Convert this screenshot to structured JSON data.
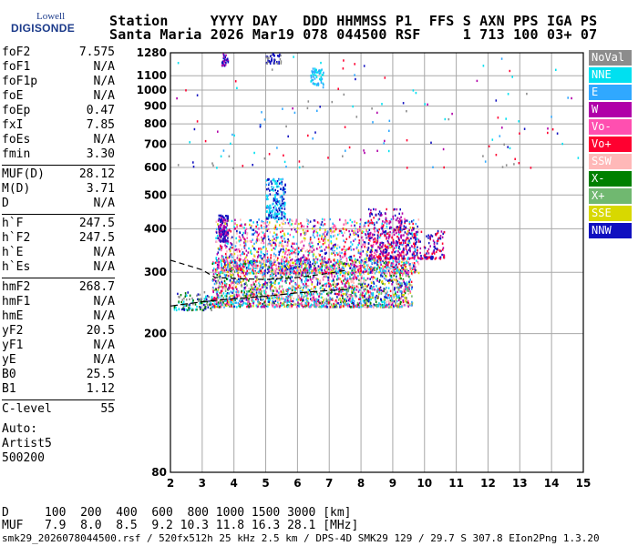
{
  "logo": {
    "line1": "Lowell",
    "line2": "DIGISONDE"
  },
  "header": {
    "row1": "Station     YYYY DAY   DDD HHMMSS P1  FFS S AXN PPS IGA PS",
    "row2": "Santa Maria 2026 Mar19 078 044500 RSF     1 713 100 03+ 07"
  },
  "params": [
    {
      "k": "foF2",
      "v": "7.575"
    },
    {
      "k": "foF1",
      "v": "N/A"
    },
    {
      "k": "foF1p",
      "v": "N/A"
    },
    {
      "k": "foE",
      "v": "N/A"
    },
    {
      "k": "foEp",
      "v": "0.47"
    },
    {
      "k": "fxI",
      "v": "7.85"
    },
    {
      "k": "foEs",
      "v": "N/A"
    },
    {
      "k": "fmin",
      "v": "3.30"
    },
    {
      "k": "MUF(D)",
      "v": "28.12"
    },
    {
      "k": "M(D)",
      "v": "3.71"
    },
    {
      "k": "D",
      "v": "N/A"
    },
    {
      "k": "h`F",
      "v": "247.5"
    },
    {
      "k": "h`F2",
      "v": "247.5"
    },
    {
      "k": "h`E",
      "v": "N/A"
    },
    {
      "k": "h`Es",
      "v": "N/A"
    },
    {
      "k": "hmF2",
      "v": "268.7"
    },
    {
      "k": "hmF1",
      "v": "N/A"
    },
    {
      "k": "hmE",
      "v": "N/A"
    },
    {
      "k": "yF2",
      "v": "20.5"
    },
    {
      "k": "yF1",
      "v": "N/A"
    },
    {
      "k": "yE",
      "v": "N/A"
    },
    {
      "k": "B0",
      "v": "25.5"
    },
    {
      "k": "B1",
      "v": "1.12"
    },
    {
      "k": "C-level",
      "v": "55"
    }
  ],
  "auto": {
    "l1": "Auto:",
    "l2": "Artist5",
    "l3": "500200"
  },
  "legend": [
    {
      "label": "NoVal",
      "color": "#8c8c8c"
    },
    {
      "label": "NNE",
      "color": "#00e0f0"
    },
    {
      "label": "E",
      "color": "#30a8ff"
    },
    {
      "label": "W",
      "color": "#b000a8"
    },
    {
      "label": "Vo-",
      "color": "#ff4fb0"
    },
    {
      "label": "Vo+",
      "color": "#ff0030"
    },
    {
      "label": "SSW",
      "color": "#ffb8b8"
    },
    {
      "label": "X-",
      "color": "#008000"
    },
    {
      "label": "X+",
      "color": "#70b870"
    },
    {
      "label": "SSE",
      "color": "#d8d800"
    },
    {
      "label": "NNW",
      "color": "#1010c0"
    }
  ],
  "muf_table": {
    "row1": "D     100  200  400  600  800 1000 1500 3000 [km]",
    "row2": "MUF   7.9  8.0  8.5  9.2 10.3 11.8 16.3 28.1 [MHz]"
  },
  "footer": "smk29_2026078044500.rsf / 520fx512h 25 kHz 2.5 km / DPS-4D SMK29 129 / 29.7 S 307.8 EIon2Png 1.3.20",
  "chart_data": {
    "type": "scatter",
    "xlim": [
      2,
      15
    ],
    "ylim": [
      80,
      1280
    ],
    "y_scale": "log",
    "x_ticks": [
      2,
      3,
      4,
      5,
      6,
      7,
      8,
      9,
      10,
      11,
      12,
      13,
      14,
      15
    ],
    "y_ticks": [
      80,
      200,
      300,
      400,
      500,
      600,
      700,
      800,
      900,
      1000,
      1100,
      1280
    ],
    "grid": true,
    "traces": [
      {
        "name": "trace-upper",
        "x": [
          2.0,
          3.0,
          3.4,
          4.0,
          5.0,
          6.0,
          7.0,
          7.6
        ],
        "y": [
          325,
          305,
          290,
          288,
          286,
          290,
          298,
          305
        ]
      },
      {
        "name": "trace-lower",
        "x": [
          2.0,
          3.0,
          4.0,
          5.0,
          6.0,
          7.0,
          7.6
        ],
        "y": [
          240,
          247,
          252,
          256,
          262,
          266,
          268
        ]
      }
    ],
    "clusters": [
      {
        "x": [
          2.1,
          3.3
        ],
        "y": [
          235,
          265
        ],
        "n": 120,
        "colors": [
          "#1010c0",
          "#8c8c8c",
          "#008000",
          "#00e0f0"
        ]
      },
      {
        "x": [
          3.3,
          9.6
        ],
        "y": [
          240,
          330
        ],
        "n": 2200,
        "colors": [
          "#1010c0",
          "#00e0f0",
          "#30a8ff",
          "#b000a8",
          "#ff0030",
          "#ff4fb0",
          "#008000",
          "#d8d800",
          "#ffb8b8",
          "#70b870"
        ]
      },
      {
        "x": [
          3.4,
          9.8
        ],
        "y": [
          300,
          430
        ],
        "n": 1600,
        "colors": [
          "#1010c0",
          "#b000a8",
          "#ff0030",
          "#00e0f0",
          "#30a8ff",
          "#ff4fb0",
          "#ffb8b8",
          "#d8d800"
        ]
      },
      {
        "x": [
          3.5,
          3.8
        ],
        "y": [
          370,
          440
        ],
        "n": 120,
        "colors": [
          "#1010c0",
          "#b000a8"
        ]
      },
      {
        "x": [
          5.0,
          5.6
        ],
        "y": [
          430,
          560
        ],
        "n": 200,
        "colors": [
          "#00e0f0",
          "#30a8ff",
          "#1010c0"
        ]
      },
      {
        "x": [
          8.2,
          9.4
        ],
        "y": [
          330,
          460
        ],
        "n": 250,
        "colors": [
          "#1010c0",
          "#ff0030",
          "#b000a8"
        ]
      },
      {
        "x": [
          9.4,
          10.6
        ],
        "y": [
          330,
          400
        ],
        "n": 150,
        "colors": [
          "#1010c0",
          "#b000a8",
          "#ff0030"
        ]
      },
      {
        "x": [
          6.4,
          6.8
        ],
        "y": [
          1040,
          1160
        ],
        "n": 60,
        "colors": [
          "#00e0f0",
          "#30a8ff"
        ]
      },
      {
        "x": [
          5.0,
          5.5
        ],
        "y": [
          1200,
          1280
        ],
        "n": 45,
        "colors": [
          "#1010c0",
          "#8c8c8c"
        ]
      },
      {
        "x": [
          3.6,
          3.8
        ],
        "y": [
          1180,
          1280
        ],
        "n": 30,
        "colors": [
          "#1010c0",
          "#b000a8"
        ]
      },
      {
        "x": [
          2.0,
          15.0
        ],
        "y": [
          600,
          1280
        ],
        "n": 140,
        "colors": [
          "#1010c0",
          "#b000a8",
          "#ff0030",
          "#00e0f0",
          "#30a8ff",
          "#8c8c8c"
        ]
      }
    ]
  }
}
